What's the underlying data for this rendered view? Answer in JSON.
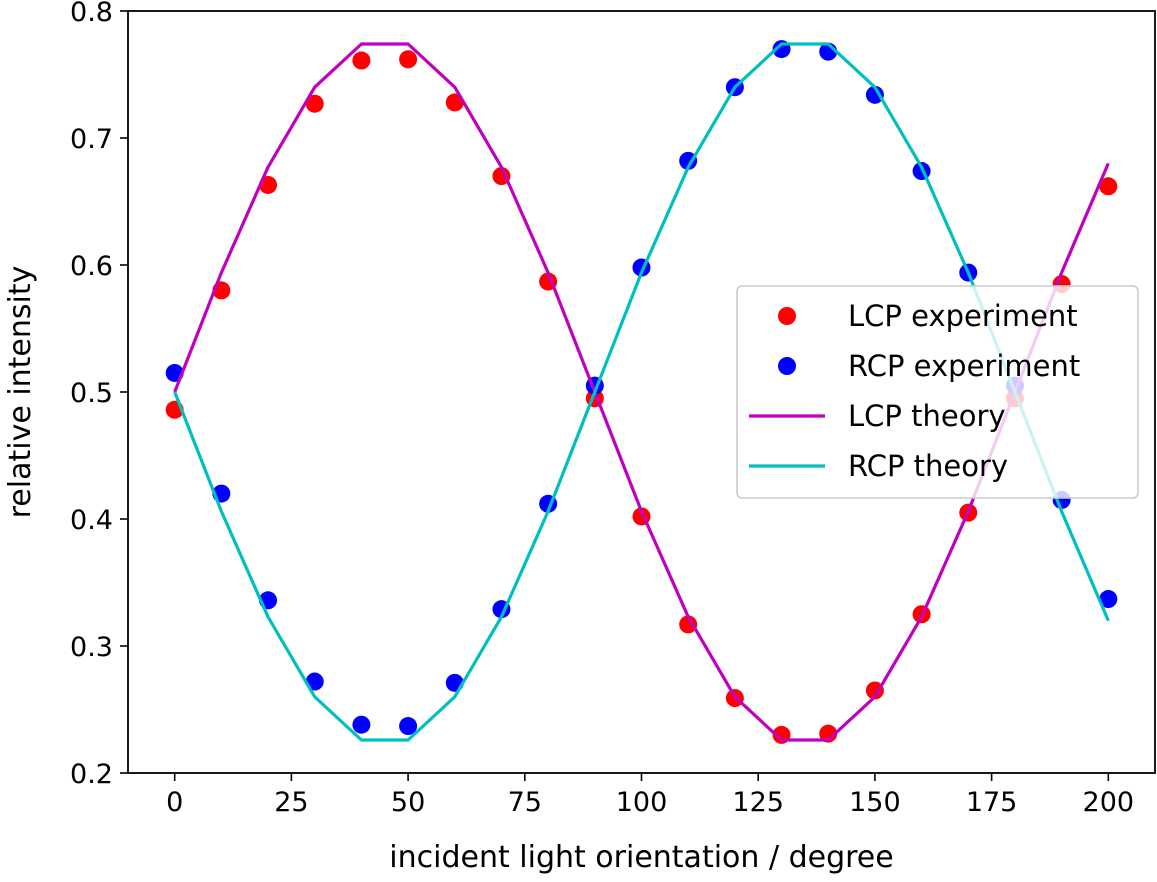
{
  "chart_data": {
    "type": "line",
    "title": "",
    "xlabel": "incident light orientation / degree",
    "ylabel": "relative intensity",
    "xlim": [
      -10,
      210
    ],
    "ylim": [
      0.2,
      0.8
    ],
    "xticks": [
      0,
      25,
      50,
      75,
      100,
      125,
      150,
      175,
      200
    ],
    "xtick_labels": [
      "0",
      "25",
      "50",
      "75",
      "100",
      "125",
      "150",
      "175",
      "200"
    ],
    "yticks": [
      0.2,
      0.3,
      0.4,
      0.5,
      0.6,
      0.7,
      0.8
    ],
    "ytick_labels": [
      "0.2",
      "0.3",
      "0.4",
      "0.5",
      "0.6",
      "0.7",
      "0.8"
    ],
    "grid": false,
    "legend_position": "center-right",
    "series": [
      {
        "name": "LCP experiment",
        "kind": "scatter",
        "color": "#ff0000",
        "x": [
          0,
          10,
          20,
          30,
          40,
          50,
          60,
          70,
          80,
          90,
          100,
          110,
          120,
          130,
          140,
          150,
          160,
          170,
          180,
          190,
          200
        ],
        "y": [
          0.486,
          0.58,
          0.663,
          0.727,
          0.761,
          0.762,
          0.728,
          0.67,
          0.587,
          0.495,
          0.402,
          0.317,
          0.259,
          0.23,
          0.231,
          0.265,
          0.325,
          0.405,
          0.495,
          0.585,
          0.662
        ]
      },
      {
        "name": "RCP experiment",
        "kind": "scatter",
        "color": "#0000ff",
        "x": [
          0,
          10,
          20,
          30,
          40,
          50,
          60,
          70,
          80,
          90,
          100,
          110,
          120,
          130,
          140,
          150,
          160,
          170,
          180,
          190,
          200
        ],
        "y": [
          0.515,
          0.42,
          0.336,
          0.272,
          0.238,
          0.237,
          0.271,
          0.329,
          0.412,
          0.505,
          0.598,
          0.682,
          0.74,
          0.77,
          0.768,
          0.734,
          0.674,
          0.594,
          0.505,
          0.415,
          0.337
        ]
      },
      {
        "name": "LCP theory",
        "kind": "line",
        "color": "#bf00bf",
        "x": [
          0,
          10,
          20,
          30,
          40,
          50,
          60,
          70,
          80,
          90,
          100,
          110,
          120,
          130,
          140,
          150,
          160,
          170,
          180,
          190,
          200
        ],
        "y": [
          0.5,
          0.594,
          0.677,
          0.74,
          0.774,
          0.774,
          0.74,
          0.677,
          0.594,
          0.5,
          0.406,
          0.323,
          0.26,
          0.226,
          0.226,
          0.26,
          0.323,
          0.406,
          0.5,
          0.594,
          0.68
        ]
      },
      {
        "name": "RCP theory",
        "kind": "line",
        "color": "#00bfbf",
        "x": [
          0,
          10,
          20,
          30,
          40,
          50,
          60,
          70,
          80,
          90,
          100,
          110,
          120,
          130,
          140,
          150,
          160,
          170,
          180,
          190,
          200
        ],
        "y": [
          0.5,
          0.406,
          0.323,
          0.26,
          0.226,
          0.226,
          0.26,
          0.323,
          0.406,
          0.5,
          0.594,
          0.677,
          0.74,
          0.774,
          0.774,
          0.74,
          0.677,
          0.594,
          0.5,
          0.406,
          0.32
        ]
      }
    ]
  }
}
